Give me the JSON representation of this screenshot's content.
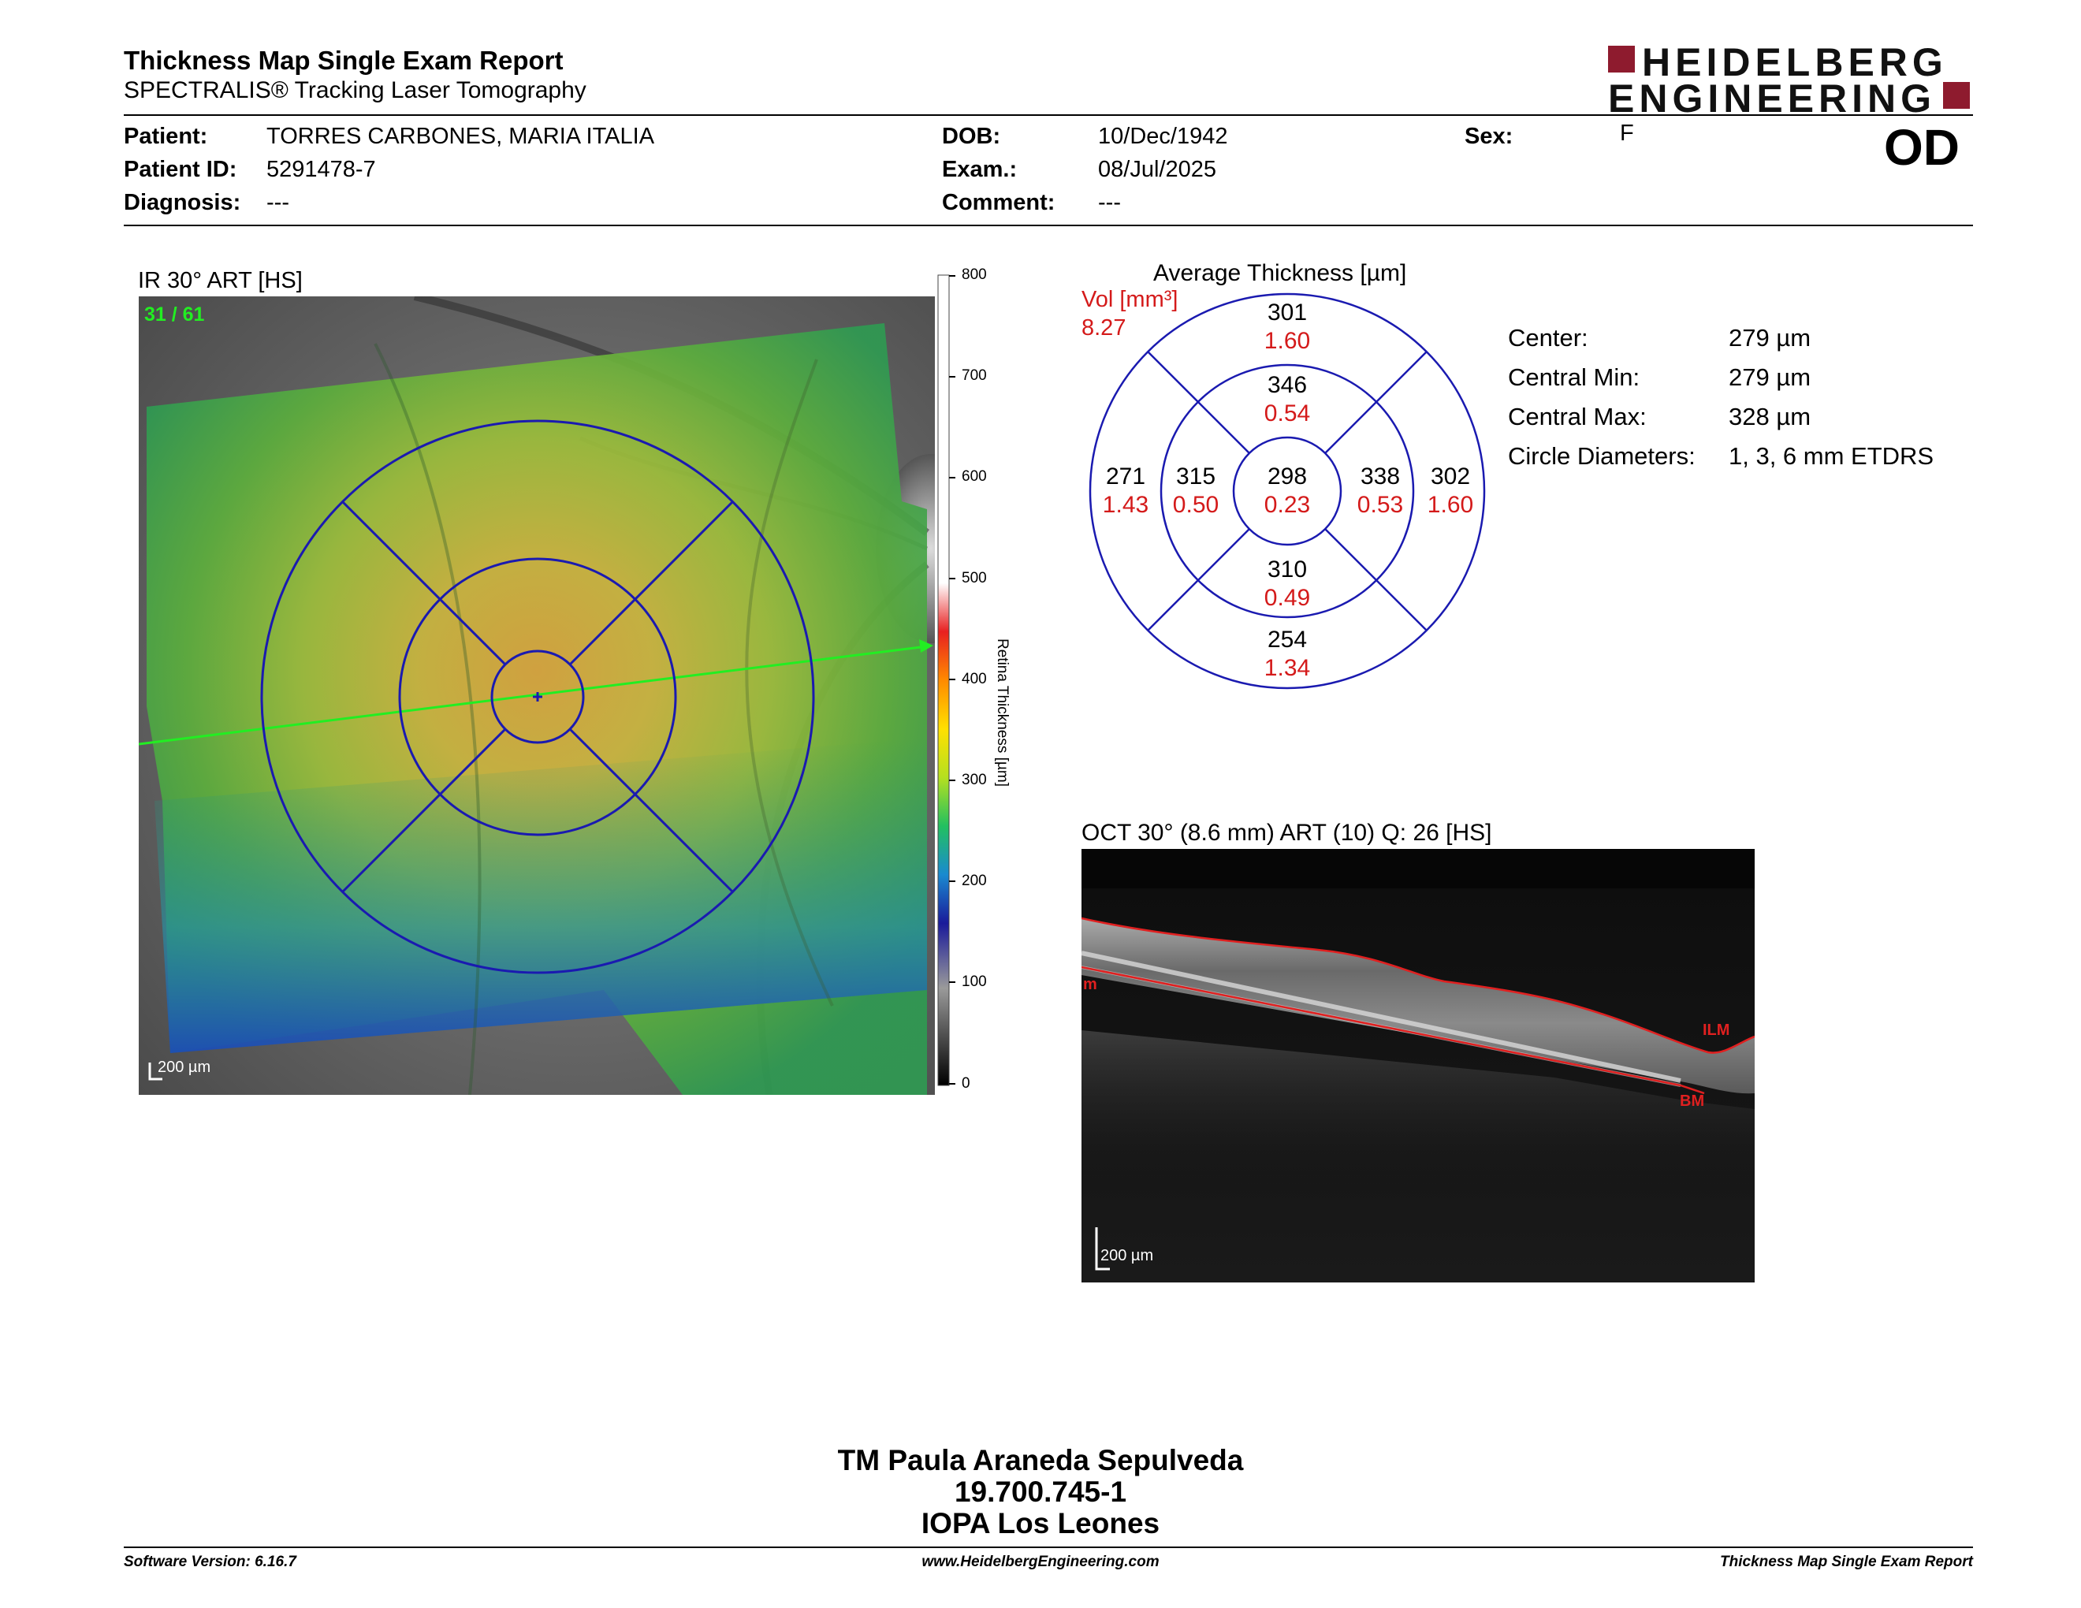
{
  "header": {
    "title": "Thickness Map Single Exam Report",
    "subtitle": "SPECTRALIS® Tracking Laser Tomography",
    "logo_line1": "HEIDELBERG",
    "logo_line2": "ENGINEERING",
    "eye": "OD"
  },
  "patient": {
    "name_label": "Patient:",
    "name": "TORRES CARBONES, MARIA ITALIA",
    "id_label": "Patient ID:",
    "id": "5291478-7",
    "diagnosis_label": "Diagnosis:",
    "diagnosis": "---",
    "dob_label": "DOB:",
    "dob": "10/Dec/1942",
    "exam_label": "Exam.:",
    "exam": "08/Jul/2025",
    "comment_label": "Comment:",
    "comment": "---",
    "sex_label": "Sex:",
    "sex": "F"
  },
  "ir_image": {
    "caption": "IR 30° ART [HS]",
    "frame": "31 / 61",
    "scale_bar": "200 µm"
  },
  "colorbar": {
    "ticks": [
      "800",
      "700",
      "600",
      "500",
      "400",
      "300",
      "200",
      "100",
      "0"
    ],
    "label": "Retina  Thickness [µm]"
  },
  "etdrs": {
    "title": "Average Thickness [µm]",
    "vol_label": "Vol [mm³]",
    "vol_total": "8.27",
    "sectors": {
      "outer_superior": {
        "thickness": "301",
        "volume": "1.60"
      },
      "inner_superior": {
        "thickness": "346",
        "volume": "0.54"
      },
      "outer_temporal": {
        "thickness": "271",
        "volume": "1.43"
      },
      "inner_temporal": {
        "thickness": "315",
        "volume": "0.50"
      },
      "center": {
        "thickness": "298",
        "volume": "0.23"
      },
      "inner_nasal": {
        "thickness": "338",
        "volume": "0.53"
      },
      "outer_nasal": {
        "thickness": "302",
        "volume": "1.60"
      },
      "inner_inferior": {
        "thickness": "310",
        "volume": "0.49"
      },
      "outer_inferior": {
        "thickness": "254",
        "volume": "1.34"
      }
    }
  },
  "stats": [
    {
      "label": "Center:",
      "value": "279 µm"
    },
    {
      "label": "Central Min:",
      "value": "279 µm"
    },
    {
      "label": "Central Max:",
      "value": "328 µm"
    },
    {
      "label": "Circle Diameters:",
      "value": "1, 3, 6 mm ETDRS"
    }
  ],
  "oct_image": {
    "caption": "OCT 30° (8.6 mm) ART (10) Q: 26 [HS]",
    "ilm_label": "ILM",
    "bm_label": "BM",
    "m_label": "m",
    "scale_bar": "200 µm"
  },
  "signature": {
    "name": "TM Paula Araneda Sepulveda",
    "rut": "19.700.745-1",
    "place": "IOPA Los Leones"
  },
  "footer": {
    "software": "Software Version: 6.16.7",
    "url": "www.HeidelbergEngineering.com",
    "report": "Thickness Map Single Exam Report"
  }
}
